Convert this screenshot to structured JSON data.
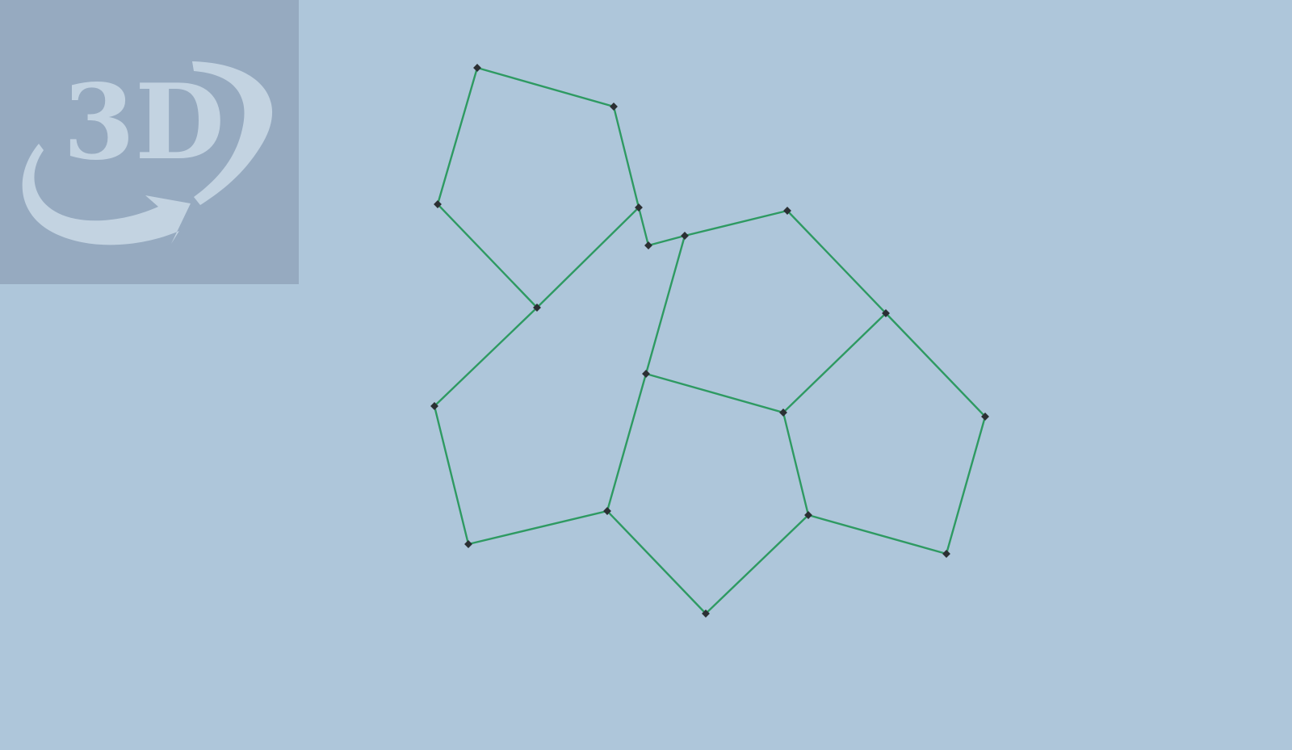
{
  "viewer": {
    "background_color": "#aec6da",
    "edge_color": "#2e9a62",
    "vertex_color": "#2b2f33"
  },
  "rotate_control": {
    "icon": "3d-rotate-icon",
    "label": "3D",
    "tile_color": "#96aac0",
    "glyph_color": "#c3d3e1"
  }
}
